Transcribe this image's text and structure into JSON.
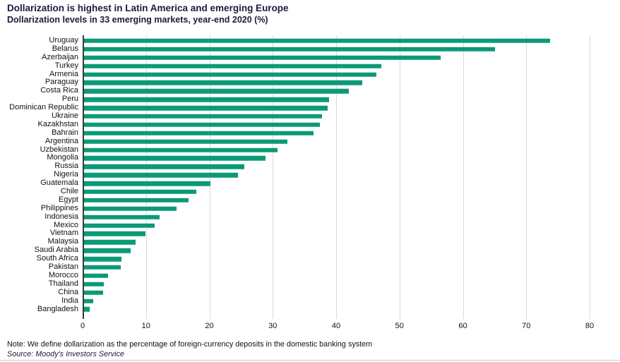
{
  "header": {
    "title": "Dollarization is highest in Latin America and emerging Europe",
    "subtitle": "Dollarization levels in 33 emerging markets, year-end 2020 (%)"
  },
  "chart_data": {
    "type": "bar",
    "orientation": "horizontal",
    "title": "Dollarization is highest in Latin America and emerging Europe",
    "subtitle": "Dollarization levels in 33 emerging markets, year-end 2020 (%)",
    "xlabel": "",
    "ylabel": "",
    "xlim": [
      0,
      80
    ],
    "x_ticks": [
      0,
      10,
      20,
      30,
      40,
      50,
      60,
      70,
      80
    ],
    "grid": "vertical",
    "legend": "none",
    "bar_color": "#0A9A78",
    "categories": [
      "Uruguay",
      "Belarus",
      "Azerbaijan",
      "Turkey",
      "Armenia",
      "Paraguay",
      "Costa Rica",
      "Peru",
      "Dominican Republic",
      "Ukraine",
      "Kazakhstan",
      "Bahrain",
      "Argentina",
      "Uzbekistan",
      "Mongolia",
      "Russia",
      "Nigeria",
      "Guatemala",
      "Chile",
      "Egypt",
      "Philippines",
      "Indonesia",
      "Mexico",
      "Vietnam",
      "Malaysia",
      "Saudi Arabia",
      "South Africa",
      "Pakistan",
      "Morocco",
      "Thailand",
      "China",
      "India",
      "Bangladesh"
    ],
    "values": [
      73.7,
      65.0,
      56.4,
      47.0,
      46.2,
      44.0,
      41.9,
      38.8,
      38.6,
      37.7,
      37.3,
      36.3,
      32.2,
      30.6,
      28.8,
      25.4,
      24.4,
      20.1,
      17.8,
      16.6,
      14.7,
      12.0,
      11.3,
      9.8,
      8.2,
      7.5,
      6.0,
      5.9,
      3.9,
      3.2,
      3.1,
      1.6,
      1.0
    ]
  },
  "footer": {
    "note": "Note: We define dollarization as the percentage of foreign-currency deposits in the domestic banking system",
    "source": "Source: Moody's Investors Service"
  },
  "colors": {
    "bar": "#0A9A78",
    "title_text": "#1B1B3D",
    "gridline": "#D9D9D9",
    "axis_line": "#3A3A3A",
    "divider": "#CCCCCC"
  }
}
